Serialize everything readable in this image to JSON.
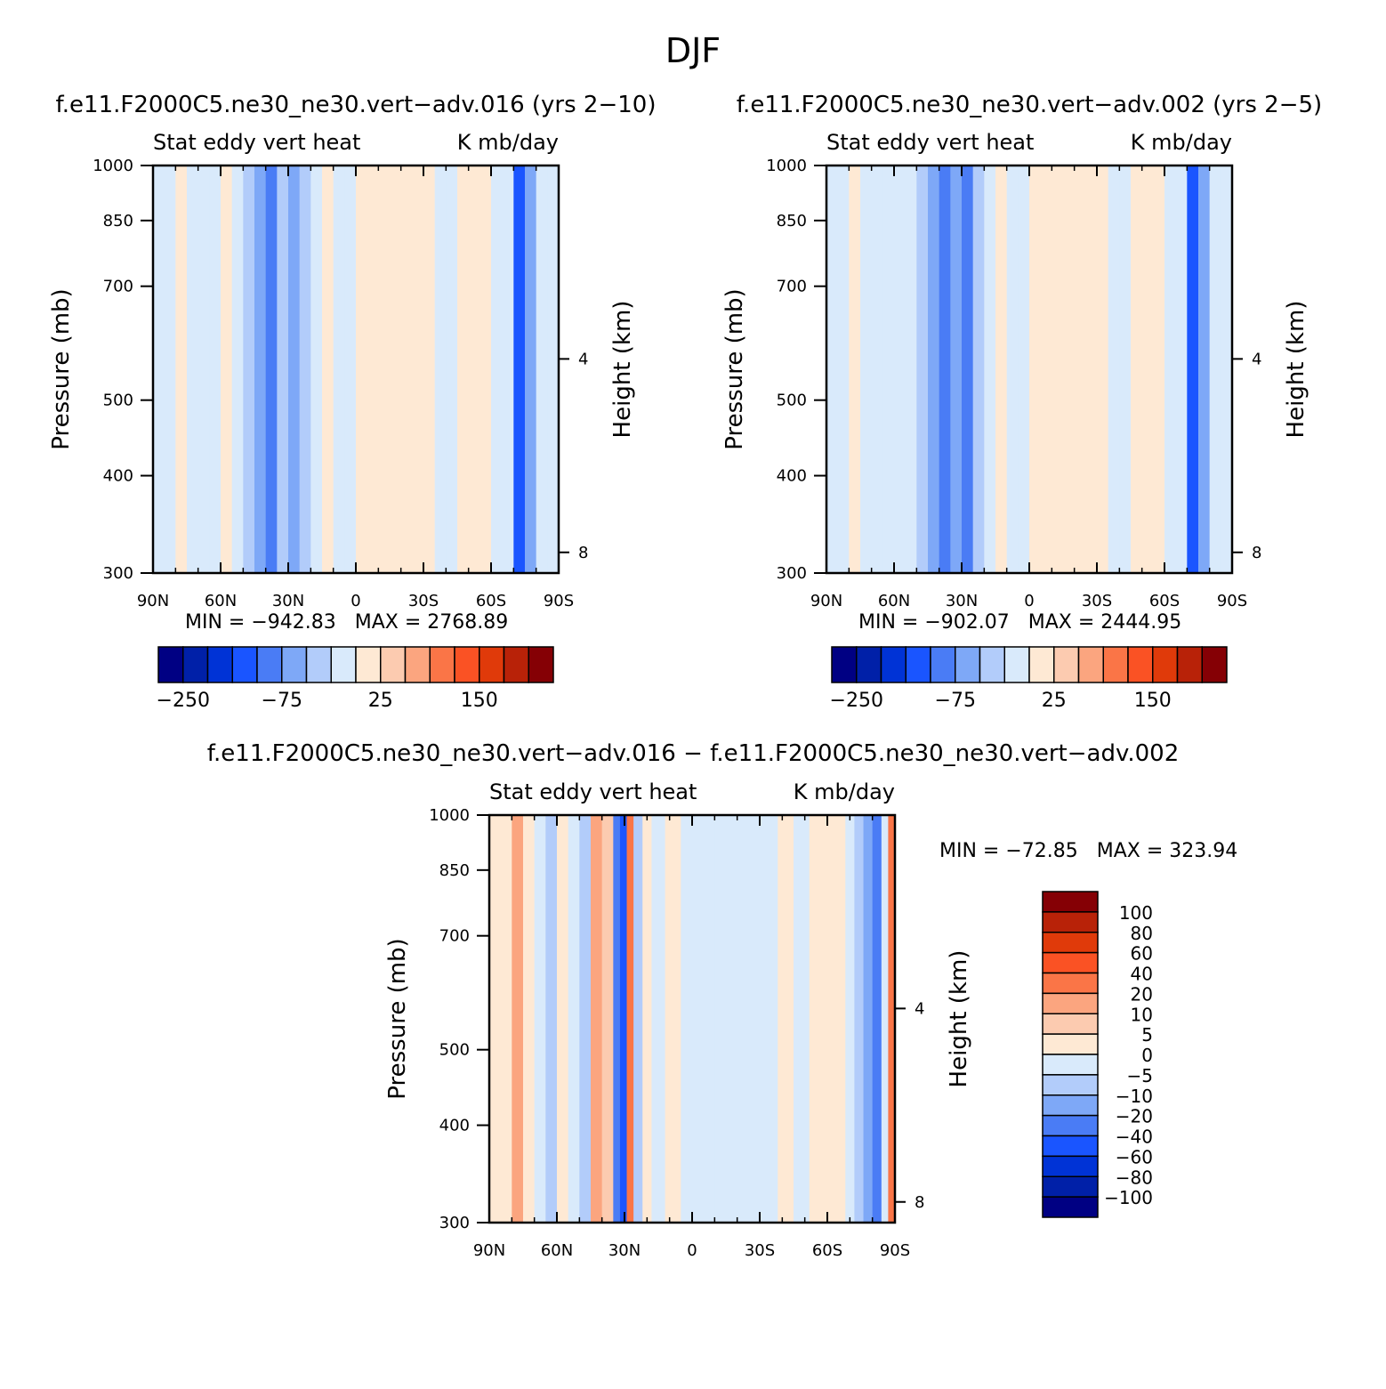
{
  "figure": {
    "title": "DJF"
  },
  "colors": {
    "levels": [
      "#000083",
      "#0020a8",
      "#0033d6",
      "#1a55ff",
      "#4a7cf5",
      "#7ea8f7",
      "#b2ccfa",
      "#d9eafb",
      "#fee9d4",
      "#fccbb0",
      "#fba57f",
      "#fa7547",
      "#fa5224",
      "#e03a0a",
      "#b82208",
      "#850005"
    ]
  },
  "chart_data": [
    {
      "type": "heatmap",
      "title": "f.e11.F2000C5.ne30_ne30.vert−adv.016 (yrs 2−10)",
      "subtitle_left": "Stat eddy vert heat",
      "subtitle_right": "K mb/day",
      "ylabel": "Pressure (mb)",
      "ylabel_right": "Height (km)",
      "x_ticks": [
        "90N",
        "60N",
        "30N",
        "0",
        "30S",
        "60S",
        "90S"
      ],
      "x_values": [
        90,
        60,
        30,
        0,
        -30,
        -60,
        -90
      ],
      "y_ticks": [
        "300",
        "400",
        "500",
        "700",
        "850",
        "1000"
      ],
      "y_values": [
        300,
        400,
        500,
        700,
        850,
        1000
      ],
      "y_right_ticks": [
        "8",
        "4"
      ],
      "y_right_values": [
        8,
        4
      ],
      "ylim": [
        1000,
        300
      ],
      "min": "−942.83",
      "max": "2768.89",
      "min_label": "MIN =",
      "max_label": "MAX =",
      "colorbar_levels": [
        -300,
        -250,
        -200,
        -150,
        -100,
        -75,
        -50,
        -25,
        0,
        25,
        50,
        75,
        100,
        150,
        200,
        250
      ],
      "colorbar_labels": [
        "−250",
        "−75",
        "25",
        "150"
      ],
      "bands": [
        {
          "lat": 90,
          "v": -5
        },
        {
          "lat": 85,
          "v": -5
        },
        {
          "lat": 80,
          "v": 3
        },
        {
          "lat": 75,
          "v": -6
        },
        {
          "lat": 70,
          "v": -10
        },
        {
          "lat": 65,
          "v": -8
        },
        {
          "lat": 60,
          "v": 3
        },
        {
          "lat": 55,
          "v": -12
        },
        {
          "lat": 50,
          "v": -30
        },
        {
          "lat": 45,
          "v": -60
        },
        {
          "lat": 40,
          "v": -90
        },
        {
          "lat": 35,
          "v": -50
        },
        {
          "lat": 30,
          "v": -75
        },
        {
          "lat": 25,
          "v": -30
        },
        {
          "lat": 20,
          "v": -5
        },
        {
          "lat": 15,
          "v": 3
        },
        {
          "lat": 10,
          "v": -5
        },
        {
          "lat": 5,
          "v": -4
        },
        {
          "lat": 0,
          "v": 5
        },
        {
          "lat": -5,
          "v": 8
        },
        {
          "lat": -10,
          "v": 5
        },
        {
          "lat": -15,
          "v": 20
        },
        {
          "lat": -20,
          "v": 15
        },
        {
          "lat": -25,
          "v": 3
        },
        {
          "lat": -30,
          "v": 3
        },
        {
          "lat": -35,
          "v": -5
        },
        {
          "lat": -40,
          "v": -5
        },
        {
          "lat": -45,
          "v": 3
        },
        {
          "lat": -50,
          "v": 5
        },
        {
          "lat": -55,
          "v": 3
        },
        {
          "lat": -60,
          "v": -5
        },
        {
          "lat": -65,
          "v": -8
        },
        {
          "lat": -70,
          "v": -120
        },
        {
          "lat": -75,
          "v": -60
        },
        {
          "lat": -80,
          "v": -15
        },
        {
          "lat": -85,
          "v": -10
        },
        {
          "lat": -90,
          "v": 30
        }
      ]
    },
    {
      "type": "heatmap",
      "title": "f.e11.F2000C5.ne30_ne30.vert−adv.002 (yrs 2−5)",
      "subtitle_left": "Stat eddy vert heat",
      "subtitle_right": "K mb/day",
      "ylabel": "Pressure (mb)",
      "ylabel_right": "Height (km)",
      "x_ticks": [
        "90N",
        "60N",
        "30N",
        "0",
        "30S",
        "60S",
        "90S"
      ],
      "x_values": [
        90,
        60,
        30,
        0,
        -30,
        -60,
        -90
      ],
      "y_ticks": [
        "300",
        "400",
        "500",
        "700",
        "850",
        "1000"
      ],
      "y_values": [
        300,
        400,
        500,
        700,
        850,
        1000
      ],
      "y_right_ticks": [
        "8",
        "4"
      ],
      "y_right_values": [
        8,
        4
      ],
      "ylim": [
        1000,
        300
      ],
      "min": "−902.07",
      "max": "2444.95",
      "min_label": "MIN =",
      "max_label": "MAX =",
      "colorbar_levels": [
        -300,
        -250,
        -200,
        -150,
        -100,
        -75,
        -50,
        -25,
        0,
        25,
        50,
        75,
        100,
        150,
        200,
        250
      ],
      "colorbar_labels": [
        "−250",
        "−75",
        "25",
        "150"
      ],
      "bands": [
        {
          "lat": 90,
          "v": -5
        },
        {
          "lat": 85,
          "v": -5
        },
        {
          "lat": 80,
          "v": 3
        },
        {
          "lat": 75,
          "v": -6
        },
        {
          "lat": 70,
          "v": -12
        },
        {
          "lat": 65,
          "v": -8
        },
        {
          "lat": 60,
          "v": -5
        },
        {
          "lat": 55,
          "v": -12
        },
        {
          "lat": 50,
          "v": -35
        },
        {
          "lat": 45,
          "v": -60
        },
        {
          "lat": 40,
          "v": -90
        },
        {
          "lat": 35,
          "v": -55
        },
        {
          "lat": 30,
          "v": -80
        },
        {
          "lat": 25,
          "v": -35
        },
        {
          "lat": 20,
          "v": -5
        },
        {
          "lat": 15,
          "v": 3
        },
        {
          "lat": 10,
          "v": -5
        },
        {
          "lat": 5,
          "v": -4
        },
        {
          "lat": 0,
          "v": 5
        },
        {
          "lat": -5,
          "v": 8
        },
        {
          "lat": -10,
          "v": 5
        },
        {
          "lat": -15,
          "v": 20
        },
        {
          "lat": -20,
          "v": 15
        },
        {
          "lat": -25,
          "v": 3
        },
        {
          "lat": -30,
          "v": 3
        },
        {
          "lat": -35,
          "v": -5
        },
        {
          "lat": -40,
          "v": -5
        },
        {
          "lat": -45,
          "v": 3
        },
        {
          "lat": -50,
          "v": 5
        },
        {
          "lat": -55,
          "v": 3
        },
        {
          "lat": -60,
          "v": -5
        },
        {
          "lat": -65,
          "v": -8
        },
        {
          "lat": -70,
          "v": -110
        },
        {
          "lat": -75,
          "v": -55
        },
        {
          "lat": -80,
          "v": -15
        },
        {
          "lat": -85,
          "v": -10
        },
        {
          "lat": -90,
          "v": 25
        }
      ]
    },
    {
      "type": "heatmap",
      "title": "f.e11.F2000C5.ne30_ne30.vert−adv.016 − f.e11.F2000C5.ne30_ne30.vert−adv.002",
      "subtitle_left": "Stat eddy vert heat",
      "subtitle_right": "K mb/day",
      "ylabel": "Pressure (mb)",
      "ylabel_right": "Height (km)",
      "x_ticks": [
        "90N",
        "60N",
        "30N",
        "0",
        "30S",
        "60S",
        "90S"
      ],
      "x_values": [
        90,
        60,
        30,
        0,
        -30,
        -60,
        -90
      ],
      "y_ticks": [
        "300",
        "400",
        "500",
        "700",
        "850",
        "1000"
      ],
      "y_values": [
        300,
        400,
        500,
        700,
        850,
        1000
      ],
      "y_right_ticks": [
        "8",
        "4"
      ],
      "y_right_values": [
        8,
        4
      ],
      "ylim": [
        1000,
        300
      ],
      "min": "−72.85",
      "max": "323.94",
      "min_label": "MIN =",
      "max_label": "MAX =",
      "colorbar_levels": [
        -120,
        -100,
        -80,
        -60,
        -40,
        -20,
        -10,
        -5,
        0,
        5,
        10,
        20,
        40,
        60,
        80,
        100
      ],
      "colorbar_labels": [
        "100",
        "80",
        "60",
        "40",
        "20",
        "10",
        "5",
        "0",
        "−5",
        "−10",
        "−20",
        "−40",
        "−60",
        "−80",
        "−100"
      ],
      "bands": [
        {
          "lat": 90,
          "v": 3
        },
        {
          "lat": 85,
          "v": 4
        },
        {
          "lat": 80,
          "v": 12
        },
        {
          "lat": 75,
          "v": 3
        },
        {
          "lat": 70,
          "v": -3
        },
        {
          "lat": 65,
          "v": -6
        },
        {
          "lat": 60,
          "v": 3
        },
        {
          "lat": 55,
          "v": -3
        },
        {
          "lat": 50,
          "v": -6
        },
        {
          "lat": 45,
          "v": 12
        },
        {
          "lat": 40,
          "v": 6
        },
        {
          "lat": 35,
          "v": -25
        },
        {
          "lat": 32,
          "v": -50
        },
        {
          "lat": 29,
          "v": 30
        },
        {
          "lat": 26,
          "v": -8
        },
        {
          "lat": 22,
          "v": 3
        },
        {
          "lat": 18,
          "v": -3
        },
        {
          "lat": 12,
          "v": 3
        },
        {
          "lat": 5,
          "v": -3
        },
        {
          "lat": 0,
          "v": -3
        },
        {
          "lat": -5,
          "v": -3
        },
        {
          "lat": -10,
          "v": -3
        },
        {
          "lat": -20,
          "v": -3
        },
        {
          "lat": -30,
          "v": -3
        },
        {
          "lat": -38,
          "v": 3
        },
        {
          "lat": -45,
          "v": -3
        },
        {
          "lat": -52,
          "v": 4
        },
        {
          "lat": -58,
          "v": 3
        },
        {
          "lat": -63,
          "v": 4
        },
        {
          "lat": -68,
          "v": -3
        },
        {
          "lat": -72,
          "v": -6
        },
        {
          "lat": -76,
          "v": -15
        },
        {
          "lat": -80,
          "v": -25
        },
        {
          "lat": -84,
          "v": -3
        },
        {
          "lat": -87,
          "v": 30
        },
        {
          "lat": -90,
          "v": 6
        }
      ]
    }
  ]
}
